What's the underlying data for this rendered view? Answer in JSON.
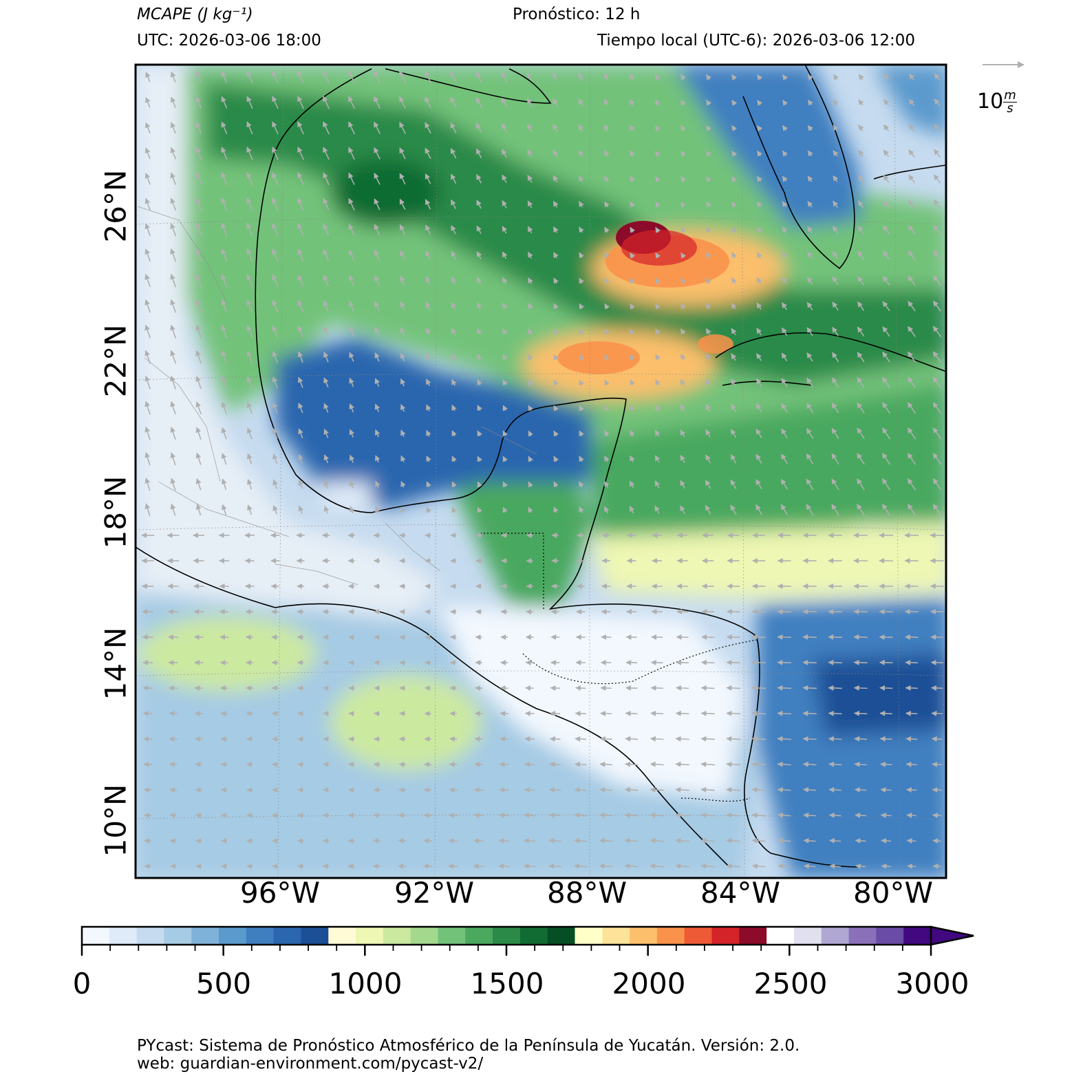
{
  "header": {
    "variable_title": "MCAPE (J kg⁻¹)",
    "forecast": "Pronóstico: 12 h",
    "utc": "UTC:  2026-03-06 18:00",
    "local_time": "Tiempo local (UTC-6): 2026-03-06 12:00"
  },
  "map": {
    "lat_labels": [
      "26°N",
      "22°N",
      "18°N",
      "14°N",
      "10°N"
    ],
    "lon_labels": [
      "96°W",
      "92°W",
      "88°W",
      "84°W",
      "80°W"
    ],
    "vector_reference": {
      "value": "10",
      "unit_num": "m",
      "unit_den": "s",
      "color": "#b0b0b0"
    },
    "field_colors": {
      "low_blue": "#2b63a8",
      "mid_green": "#3d9a4e",
      "high_orange": "#f39b4f",
      "peak_red": "#8c0a2a"
    }
  },
  "colorbar": {
    "ticks": [
      "0",
      "500",
      "1000",
      "1500",
      "2000",
      "2500",
      "3000"
    ],
    "colors": [
      "#f3f8fe",
      "#dfebf8",
      "#c6dbef",
      "#a6cbe4",
      "#7fb2d9",
      "#5b9acd",
      "#3f7fc0",
      "#2b66ae",
      "#1b4f96",
      "#fffbd6",
      "#eef7b3",
      "#cce9a0",
      "#a4d98d",
      "#73c27a",
      "#4aa85f",
      "#2c8a48",
      "#116c33",
      "#064f25",
      "#ffffc8",
      "#fde39a",
      "#fcbf6c",
      "#f9924b",
      "#ee5a35",
      "#d42329",
      "#8c0a2a",
      "#ffffff",
      "#e0e0ef",
      "#b0a8d3",
      "#8a70b8",
      "#6a4ba6",
      "#41087f"
    ]
  },
  "footer": {
    "line1": "PYcast: Sistema de Pronóstico Atmosférico de la Península de Yucatán. Versión: 2.0.",
    "line2": "web: guardian-environment.com/pycast-v2/"
  }
}
